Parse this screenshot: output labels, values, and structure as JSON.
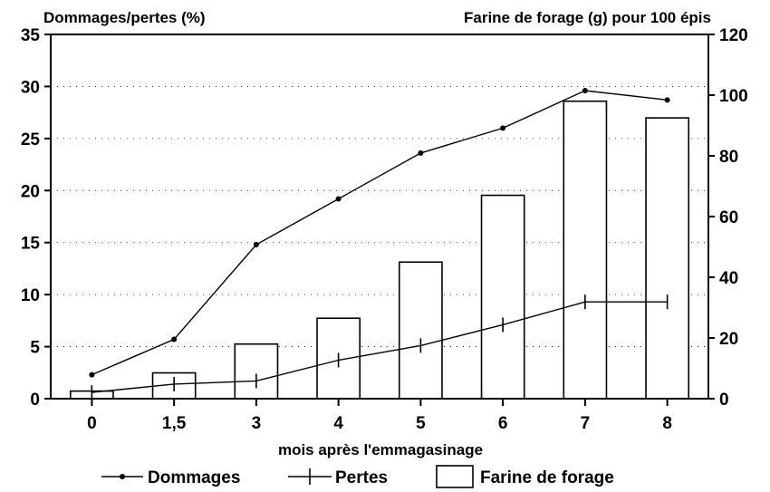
{
  "chart_data": {
    "type": "bar",
    "y_left_title": "Dommages/pertes (%)",
    "y_right_title": "Farine de forage (g) pour 100 épis",
    "xlabel": "mois après l'emmagasinage",
    "categories": [
      "0",
      "1,5",
      "3",
      "4",
      "5",
      "6",
      "7",
      "8"
    ],
    "ylim_left": [
      0,
      35
    ],
    "yticks_left": [
      "0",
      "5",
      "10",
      "15",
      "20",
      "25",
      "30",
      "35"
    ],
    "ylim_right": [
      0,
      120
    ],
    "yticks_right": [
      "0",
      "20",
      "40",
      "60",
      "80",
      "100",
      "120"
    ],
    "grid": "horizontal dotted",
    "legend_position": "bottom",
    "series": [
      {
        "name": "Dommages",
        "kind": "line",
        "marker": "dot",
        "axis": "left",
        "values": [
          2.3,
          5.7,
          14.8,
          19.2,
          23.6,
          26.0,
          29.6,
          28.7
        ]
      },
      {
        "name": "Pertes",
        "kind": "line",
        "marker": "plus",
        "axis": "left",
        "values": [
          0.6,
          1.4,
          1.7,
          3.7,
          5.1,
          7.1,
          9.3,
          9.3
        ]
      },
      {
        "name": "Farine de forage",
        "kind": "bar",
        "axis": "right",
        "values": [
          2.5,
          8.5,
          18,
          26.5,
          45,
          67,
          98,
          92.5
        ]
      }
    ],
    "colors": {
      "ink": "#000000",
      "bar_fill": "#ffffff",
      "background": "#ffffff"
    }
  }
}
